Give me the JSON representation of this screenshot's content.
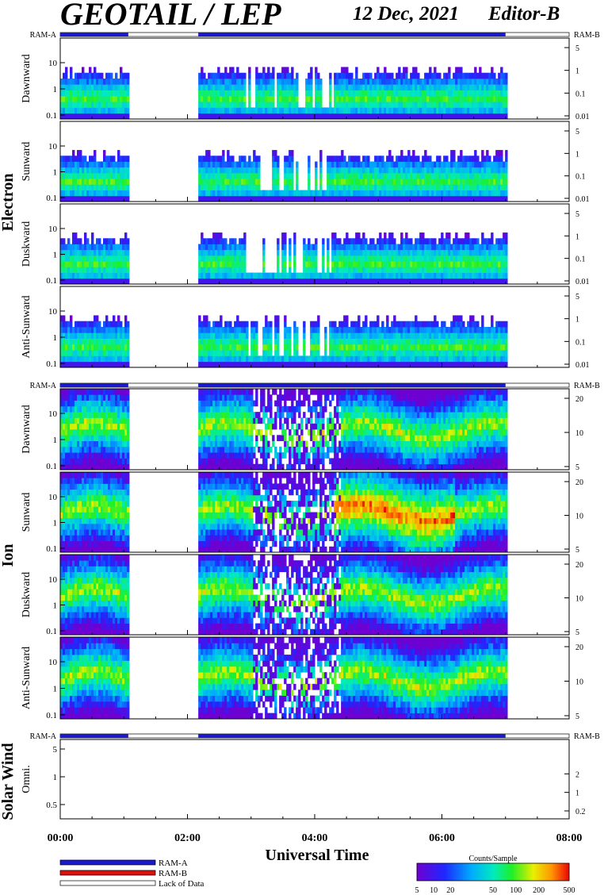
{
  "header": {
    "title": "GEOTAIL / LEP",
    "date": "12 Dec, 2021",
    "editor": "Editor-B"
  },
  "colors": {
    "ram_a": "#1a1acc",
    "ram_b": "#dd1111",
    "lack_of_data": "#ffffff",
    "frame": "#000000"
  },
  "chart_data": {
    "type": "heatmap",
    "xlabel": "Universal Time",
    "x_ticks": [
      "00:00",
      "02:00",
      "04:00",
      "06:00",
      "08:00"
    ],
    "x_range_hours": [
      0,
      8
    ],
    "data_coverage_hours": [
      [
        0.0,
        1.07
      ],
      [
        2.17,
        7.0
      ]
    ],
    "ram_a_hours": [
      [
        0.0,
        1.07
      ],
      [
        2.17,
        7.0
      ]
    ],
    "groups": [
      {
        "name": "Electron",
        "bar_left": "RAM-A",
        "bar_right": "RAM-B",
        "panels": [
          {
            "label": "Dawnward",
            "left_ticks": [
              "0.1",
              "1",
              "10"
            ],
            "right_ticks": [
              "0.01",
              "0.1",
              "1",
              "5"
            ]
          },
          {
            "label": "Sunward",
            "left_ticks": [
              "0.1",
              "1",
              "10"
            ],
            "right_ticks": [
              "0.01",
              "0.1",
              "1",
              "5"
            ]
          },
          {
            "label": "Duskward",
            "left_ticks": [
              "0.1",
              "1",
              "10"
            ],
            "right_ticks": [
              "0.01",
              "0.1",
              "1",
              "5"
            ]
          },
          {
            "label": "Anti-Sunward",
            "left_ticks": [
              "0.1",
              "1",
              "10"
            ],
            "right_ticks": [
              "0.01",
              "0.1",
              "1",
              "5"
            ]
          }
        ]
      },
      {
        "name": "Ion",
        "bar_left": "RAM-A",
        "bar_right": "RAM-B",
        "panels": [
          {
            "label": "Dawnward",
            "left_ticks": [
              "0.1",
              "1",
              "10"
            ],
            "right_ticks": [
              "5",
              "10",
              "20"
            ]
          },
          {
            "label": "Sunward",
            "left_ticks": [
              "0.1",
              "1",
              "10"
            ],
            "right_ticks": [
              "5",
              "10",
              "20"
            ]
          },
          {
            "label": "Duskward",
            "left_ticks": [
              "0.1",
              "1",
              "10"
            ],
            "right_ticks": [
              "5",
              "10",
              "20"
            ]
          },
          {
            "label": "Anti-Sunward",
            "left_ticks": [
              "0.1",
              "1",
              "10"
            ],
            "right_ticks": [
              "5",
              "10",
              "20"
            ]
          }
        ]
      },
      {
        "name": "Solar Wind",
        "bar_left": "RAM-A",
        "bar_right": "RAM-B",
        "panels": [
          {
            "label": "Omni.",
            "left_ticks": [
              "0.5",
              "1",
              "5"
            ],
            "right_ticks": [
              "0.2",
              "1",
              "2"
            ]
          }
        ]
      }
    ],
    "legend": [
      "RAM-A",
      "RAM-B",
      "Lack of Data"
    ],
    "colorbar": {
      "title": "Counts/Sample",
      "ticks": [
        "5",
        "10",
        "20",
        "50",
        "100",
        "200",
        "500"
      ]
    }
  }
}
